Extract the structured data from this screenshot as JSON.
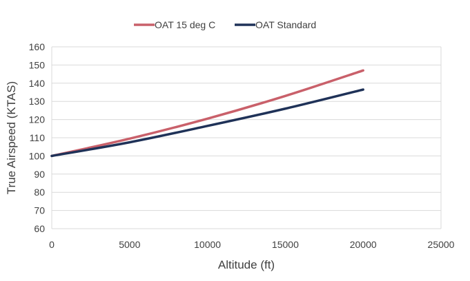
{
  "chart_data": {
    "type": "line",
    "title": "",
    "xlabel": "Altitude (ft)",
    "ylabel": "True Airspeed (KTAS)",
    "xlim": [
      0,
      25000
    ],
    "ylim": [
      60,
      160
    ],
    "x_ticks": [
      0,
      5000,
      10000,
      15000,
      20000,
      25000
    ],
    "y_ticks": [
      60,
      70,
      80,
      90,
      100,
      110,
      120,
      130,
      140,
      150,
      160
    ],
    "grid": "horizontal",
    "legend_position": "top",
    "x": [
      0,
      5000,
      10000,
      15000,
      20000
    ],
    "series": [
      {
        "name": "OAT 15 deg C",
        "color": "#C9606A",
        "values": [
          100,
          109.5,
          120.5,
          133,
          147
        ]
      },
      {
        "name": "OAT Standard",
        "color": "#1F3258",
        "values": [
          100,
          107.5,
          116.5,
          126,
          136.5
        ]
      }
    ]
  }
}
